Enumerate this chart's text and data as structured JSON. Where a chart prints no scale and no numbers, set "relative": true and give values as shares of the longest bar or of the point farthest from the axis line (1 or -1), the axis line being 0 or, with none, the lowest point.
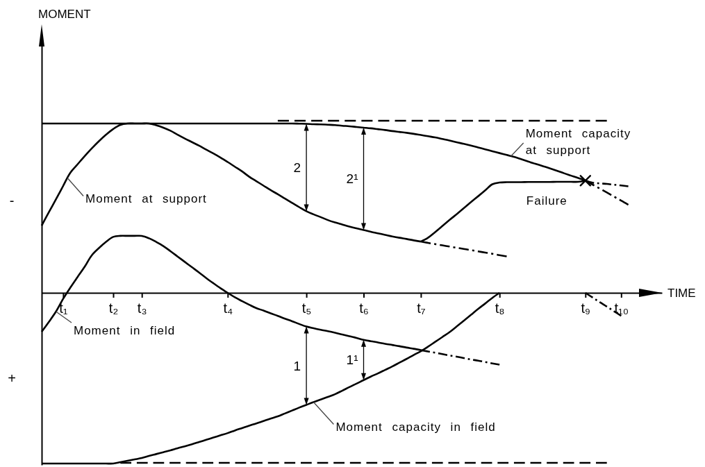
{
  "chart_data": {
    "type": "line",
    "relative": true,
    "xlabel": "TIME",
    "categories": [
      null,
      null,
      null,
      "t₁",
      null,
      null,
      null,
      null,
      null,
      null,
      "t₂",
      null,
      null,
      null,
      "t₃",
      null,
      null,
      null,
      null,
      null,
      null,
      null,
      null,
      null,
      null,
      null,
      "t₄",
      null,
      null,
      null,
      null,
      null,
      null,
      null,
      null,
      null,
      null,
      "t₅",
      null,
      null,
      null,
      null,
      null,
      null,
      null,
      "t₆",
      null,
      null,
      null,
      null,
      null,
      null,
      null,
      "t₇",
      null,
      null,
      null,
      null,
      null,
      null,
      null,
      null,
      null,
      null,
      "t₈",
      null,
      null,
      null,
      null,
      null,
      null,
      null,
      null,
      null,
      null,
      null,
      "t₉",
      null,
      null,
      null,
      null,
      "t₁₀",
      null
    ],
    "series": [
      {
        "name": "Moment capacity at support",
        "color": "#000000",
        "line_style": "solid",
        "values": [
          0.984,
          0.984,
          0.984,
          0.984,
          0.984,
          0.984,
          0.984,
          0.984,
          0.984,
          0.984,
          0.984,
          0.984,
          0.984,
          0.984,
          0.984,
          0.984,
          0.984,
          0.984,
          0.984,
          0.984,
          0.984,
          0.984,
          0.984,
          0.984,
          0.984,
          0.984,
          0.984,
          0.984,
          0.984,
          0.984,
          0.984,
          0.984,
          0.984,
          0.984,
          0.984,
          0.984,
          0.983,
          0.982,
          0.98,
          0.979,
          0.977,
          0.975,
          0.971,
          0.968,
          0.964,
          0.96,
          0.956,
          0.951,
          0.946,
          0.94,
          0.935,
          0.93,
          0.924,
          0.917,
          0.91,
          0.903,
          0.894,
          0.885,
          0.875,
          0.866,
          0.856,
          0.845,
          0.834,
          0.823,
          0.812,
          0.801,
          0.79,
          0.777,
          0.763,
          0.75,
          0.737,
          0.724,
          0.71,
          0.695,
          0.681,
          0.667,
          0.652,
          null,
          null,
          null,
          null,
          null,
          null
        ]
      },
      {
        "color": "#000000",
        "line_style": "dashdot",
        "values": [
          null,
          null,
          null,
          null,
          null,
          null,
          null,
          null,
          null,
          null,
          null,
          null,
          null,
          null,
          null,
          null,
          null,
          null,
          null,
          null,
          null,
          null,
          null,
          null,
          null,
          null,
          null,
          null,
          null,
          null,
          null,
          null,
          null,
          null,
          null,
          null,
          null,
          null,
          null,
          null,
          null,
          null,
          null,
          null,
          null,
          null,
          null,
          null,
          null,
          null,
          null,
          null,
          null,
          null,
          null,
          null,
          null,
          null,
          null,
          null,
          null,
          null,
          null,
          null,
          null,
          null,
          null,
          null,
          null,
          null,
          null,
          null,
          null,
          null,
          null,
          null,
          0.652,
          0.629,
          0.606,
          0.583,
          0.559,
          0.536,
          0.512
        ]
      },
      {
        "color": "#000000",
        "line_style": "dashed",
        "values": [
          null,
          null,
          null,
          null,
          null,
          null,
          null,
          null,
          null,
          null,
          null,
          null,
          null,
          null,
          null,
          null,
          null,
          null,
          null,
          null,
          null,
          null,
          null,
          null,
          null,
          null,
          null,
          null,
          null,
          null,
          null,
          null,
          null,
          1,
          1,
          1,
          1,
          1,
          1,
          1,
          1,
          1,
          1,
          1,
          1,
          1,
          1,
          1,
          1,
          1,
          1,
          1,
          1,
          1,
          1,
          1,
          1,
          1,
          1,
          1,
          1,
          1,
          1,
          1,
          1,
          1,
          1,
          1,
          1,
          1,
          1,
          1,
          1,
          1,
          1,
          1,
          1,
          1,
          1,
          1,
          null,
          null,
          null
        ]
      },
      {
        "name": "Moment at support",
        "color": "#000000",
        "line_style": "solid",
        "values": [
          0.391,
          0.468,
          0.544,
          0.621,
          0.698,
          0.746,
          0.794,
          0.839,
          0.881,
          0.919,
          0.952,
          0.976,
          0.984,
          0.984,
          0.984,
          0.984,
          0.974,
          0.96,
          0.942,
          0.919,
          0.897,
          0.876,
          0.855,
          0.832,
          0.81,
          0.786,
          0.76,
          0.733,
          0.706,
          0.675,
          0.649,
          0.623,
          0.597,
          0.573,
          0.548,
          0.523,
          0.498,
          0.474,
          0.456,
          0.44,
          0.423,
          0.409,
          0.397,
          0.385,
          0.375,
          0.365,
          0.355,
          0.346,
          0.337,
          0.328,
          0.32,
          0.313,
          0.305,
          0.298,
          null,
          null,
          null,
          null,
          null,
          null,
          null,
          null,
          null,
          null,
          null,
          null,
          null,
          null,
          null,
          null,
          null,
          null,
          null,
          null,
          null,
          null,
          null,
          null,
          null,
          null,
          null,
          null,
          null
        ]
      },
      {
        "color": "#000000",
        "line_style": "dashdot",
        "values": [
          null,
          null,
          null,
          null,
          null,
          null,
          null,
          null,
          null,
          null,
          null,
          null,
          null,
          null,
          null,
          null,
          null,
          null,
          null,
          null,
          null,
          null,
          null,
          null,
          null,
          null,
          null,
          null,
          null,
          null,
          null,
          null,
          null,
          null,
          null,
          null,
          null,
          null,
          null,
          null,
          null,
          null,
          null,
          null,
          null,
          null,
          null,
          null,
          null,
          null,
          null,
          null,
          null,
          0.298,
          0.29,
          0.283,
          0.276,
          0.269,
          0.262,
          0.255,
          0.248,
          0.241,
          0.234,
          0.227,
          0.219,
          0.212,
          null,
          null,
          null,
          null,
          null,
          null,
          null,
          null,
          null,
          null,
          null,
          null,
          null,
          null,
          null,
          null,
          null
        ]
      },
      {
        "color": "#000000",
        "line_style": "solid",
        "values": [
          null,
          null,
          null,
          null,
          null,
          null,
          null,
          null,
          null,
          null,
          null,
          null,
          null,
          null,
          null,
          null,
          null,
          null,
          null,
          null,
          null,
          null,
          null,
          null,
          null,
          null,
          null,
          null,
          null,
          null,
          null,
          null,
          null,
          null,
          null,
          null,
          null,
          null,
          null,
          null,
          null,
          null,
          null,
          null,
          null,
          null,
          null,
          null,
          null,
          null,
          null,
          null,
          null,
          0.298,
          0.32,
          0.353,
          0.388,
          0.423,
          0.457,
          0.492,
          0.527,
          0.561,
          0.596,
          0.631,
          0.641,
          0.643,
          0.643,
          0.643,
          0.644,
          0.644,
          0.644,
          0.644,
          0.645,
          0.645,
          0.645,
          0.645,
          0.652,
          null,
          null,
          null,
          null,
          null,
          null
        ]
      },
      {
        "color": "#000000",
        "line_style": "dashdot",
        "values": [
          null,
          null,
          null,
          null,
          null,
          null,
          null,
          null,
          null,
          null,
          null,
          null,
          null,
          null,
          null,
          null,
          null,
          null,
          null,
          null,
          null,
          null,
          null,
          null,
          null,
          null,
          null,
          null,
          null,
          null,
          null,
          null,
          null,
          null,
          null,
          null,
          null,
          null,
          null,
          null,
          null,
          null,
          null,
          null,
          null,
          null,
          null,
          null,
          null,
          null,
          null,
          null,
          null,
          null,
          null,
          null,
          null,
          null,
          null,
          null,
          null,
          null,
          null,
          null,
          null,
          null,
          null,
          null,
          null,
          null,
          null,
          null,
          null,
          null,
          null,
          null,
          0.652,
          0.64,
          0.636,
          0.633,
          0.628,
          0.624,
          0.619
        ]
      },
      {
        "name": "Moment in field",
        "color": "#000000",
        "line_style": "solid",
        "values": [
          -0.226,
          -0.169,
          -0.109,
          -0.035,
          0.03,
          0.091,
          0.151,
          0.218,
          0.26,
          0.296,
          0.325,
          0.331,
          0.331,
          0.331,
          0.331,
          0.317,
          0.296,
          0.272,
          0.242,
          0.211,
          0.18,
          0.149,
          0.118,
          0.086,
          0.056,
          0.027,
          0,
          -0.026,
          -0.048,
          -0.069,
          -0.089,
          -0.103,
          -0.119,
          -0.134,
          -0.15,
          -0.165,
          -0.181,
          -0.196,
          -0.206,
          -0.215,
          -0.223,
          -0.232,
          -0.242,
          -0.252,
          -0.262,
          -0.273,
          -0.281,
          -0.288,
          -0.296,
          -0.303,
          -0.31,
          -0.318,
          -0.325,
          -0.333,
          null,
          null,
          null,
          null,
          null,
          null,
          null,
          null,
          null,
          null,
          null,
          null,
          null,
          null,
          null,
          null,
          null,
          null,
          null,
          null,
          null,
          null,
          null,
          null,
          null,
          null,
          null,
          null,
          null
        ]
      },
      {
        "color": "#000000",
        "line_style": "dashdot",
        "values": [
          null,
          null,
          null,
          null,
          null,
          null,
          null,
          null,
          null,
          null,
          null,
          null,
          null,
          null,
          null,
          null,
          null,
          null,
          null,
          null,
          null,
          null,
          null,
          null,
          null,
          null,
          null,
          null,
          null,
          null,
          null,
          null,
          null,
          null,
          null,
          null,
          null,
          null,
          null,
          null,
          null,
          null,
          null,
          null,
          null,
          null,
          null,
          null,
          null,
          null,
          null,
          null,
          null,
          -0.333,
          -0.341,
          -0.348,
          -0.356,
          -0.364,
          -0.371,
          -0.379,
          -0.387,
          -0.394,
          -0.402,
          -0.41,
          -0.417,
          null,
          null,
          null,
          null,
          null,
          null,
          null,
          null,
          null,
          null,
          null,
          null,
          null,
          null,
          null,
          null,
          null,
          null
        ]
      },
      {
        "name": "Moment capacity in field",
        "color": "#000000",
        "line_style": "solid",
        "values": [
          -0.992,
          -0.992,
          -0.992,
          -0.992,
          -0.992,
          -0.992,
          -0.992,
          -0.992,
          -0.992,
          -0.992,
          -0.992,
          -0.984,
          -0.976,
          -0.968,
          -0.96,
          -0.948,
          -0.937,
          -0.926,
          -0.915,
          -0.903,
          -0.892,
          -0.88,
          -0.867,
          -0.854,
          -0.841,
          -0.828,
          -0.815,
          -0.8,
          -0.786,
          -0.772,
          -0.759,
          -0.745,
          -0.731,
          -0.718,
          -0.701,
          -0.684,
          -0.667,
          -0.651,
          -0.635,
          -0.62,
          -0.605,
          -0.589,
          -0.569,
          -0.548,
          -0.528,
          -0.507,
          -0.487,
          -0.468,
          -0.448,
          -0.428,
          -0.406,
          -0.384,
          -0.361,
          -0.339,
          -0.313,
          -0.285,
          -0.257,
          -0.229,
          -0.196,
          -0.162,
          -0.128,
          -0.094,
          -0.062,
          -0.029,
          0,
          null,
          null,
          null,
          null,
          null,
          null,
          null,
          null,
          null,
          null,
          null,
          null,
          null,
          null,
          null,
          null,
          null,
          null
        ]
      },
      {
        "color": "#000000",
        "line_style": "dashed",
        "values": [
          null,
          null,
          null,
          null,
          null,
          null,
          null,
          null,
          null,
          null,
          null,
          -0.988,
          -0.988,
          -0.988,
          -0.988,
          -0.988,
          -0.988,
          -0.988,
          -0.988,
          -0.988,
          -0.988,
          -0.988,
          -0.988,
          -0.988,
          -0.988,
          -0.988,
          -0.988,
          -0.988,
          -0.988,
          -0.988,
          -0.988,
          -0.988,
          -0.988,
          -0.988,
          -0.988,
          -0.988,
          -0.988,
          -0.988,
          -0.988,
          -0.988,
          -0.988,
          -0.988,
          -0.988,
          -0.988,
          -0.988,
          -0.988,
          -0.988,
          -0.988,
          -0.988,
          -0.988,
          -0.988,
          -0.988,
          -0.988,
          -0.988,
          -0.988,
          -0.988,
          -0.988,
          -0.988,
          -0.988,
          -0.988,
          -0.988,
          -0.988,
          -0.988,
          -0.988,
          -0.988,
          -0.988,
          -0.988,
          -0.988,
          -0.988,
          -0.988,
          -0.988,
          -0.988,
          -0.988,
          -0.988,
          -0.988,
          -0.988,
          -0.988,
          -0.988,
          -0.988,
          -0.988,
          null,
          null,
          null
        ]
      },
      {
        "color": "#000000",
        "line_style": "dashdot",
        "values": [
          null,
          null,
          null,
          null,
          null,
          null,
          null,
          null,
          null,
          null,
          null,
          null,
          null,
          null,
          null,
          null,
          null,
          null,
          null,
          null,
          null,
          null,
          null,
          null,
          null,
          null,
          null,
          null,
          null,
          null,
          null,
          null,
          null,
          null,
          null,
          null,
          null,
          null,
          null,
          null,
          null,
          null,
          null,
          null,
          null,
          null,
          null,
          null,
          null,
          null,
          null,
          null,
          null,
          null,
          null,
          null,
          null,
          null,
          null,
          null,
          null,
          null,
          null,
          null,
          null,
          null,
          null,
          null,
          null,
          null,
          null,
          null,
          null,
          null,
          null,
          null,
          0,
          -0.027,
          -0.054,
          -0.08,
          -0.107,
          -0.134,
          null
        ]
      },
      {
        "name": "Failure",
        "type": "scatter",
        "marker": "cross",
        "color": "#000000",
        "values": [
          null,
          null,
          null,
          null,
          null,
          null,
          null,
          null,
          null,
          null,
          null,
          null,
          null,
          null,
          null,
          null,
          null,
          null,
          null,
          null,
          null,
          null,
          null,
          null,
          null,
          null,
          null,
          null,
          null,
          null,
          null,
          null,
          null,
          null,
          null,
          null,
          null,
          null,
          null,
          null,
          null,
          null,
          null,
          null,
          null,
          null,
          null,
          null,
          null,
          null,
          null,
          null,
          null,
          null,
          null,
          null,
          null,
          null,
          null,
          null,
          null,
          null,
          null,
          null,
          null,
          null,
          null,
          null,
          null,
          null,
          null,
          null,
          null,
          null,
          null,
          null,
          0.652,
          null,
          null,
          null,
          null,
          null,
          null
        ]
      }
    ],
    "annotations": [
      "MOMENT",
      "-",
      "+",
      "2",
      "2¹",
      "1",
      "1¹"
    ]
  }
}
